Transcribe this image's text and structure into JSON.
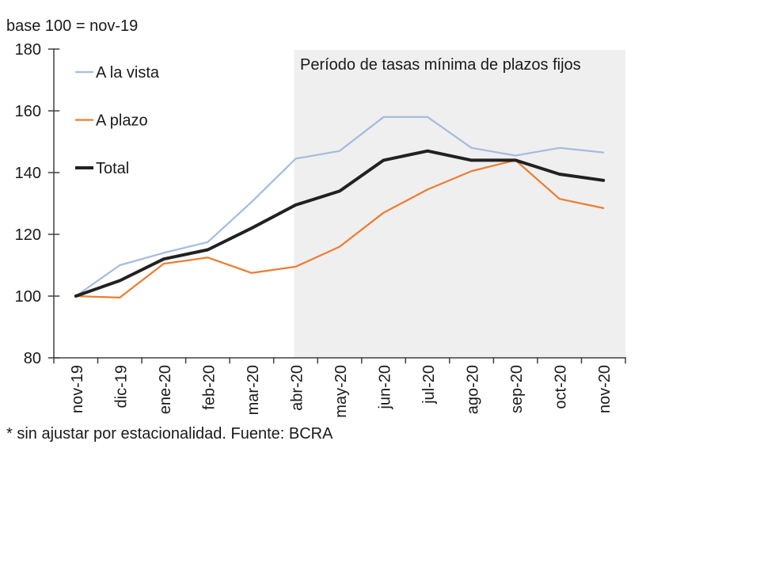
{
  "page": {
    "background_color": "#ffffff"
  },
  "chart_data": {
    "type": "line",
    "title": "base 100 = nov-19",
    "footnote": "* sin ajustar por estacionalidad. Fuente: BCRA",
    "categories": [
      "nov-19",
      "dic-19",
      "ene-20",
      "feb-20",
      "mar-20",
      "abr-20",
      "may-20",
      "jun-20",
      "jul-20",
      "ago-20",
      "sep-20",
      "oct-20",
      "nov-20"
    ],
    "series": [
      {
        "name": "A la vista",
        "color": "#A6BCDE",
        "width": 2.25,
        "values": [
          100,
          110,
          114,
          117.5,
          130.5,
          144.5,
          147,
          158,
          158,
          148,
          145.5,
          148,
          146.5
        ]
      },
      {
        "name": "A plazo",
        "color": "#ED7D31",
        "width": 2.25,
        "values": [
          100,
          99.5,
          110.5,
          112.5,
          107.5,
          109.5,
          116,
          127,
          134.5,
          140.5,
          144,
          131.5,
          128.5
        ]
      },
      {
        "name": "Total",
        "color": "#212121",
        "width": 4,
        "values": [
          100,
          105,
          112,
          115,
          122,
          129.5,
          134,
          144,
          147,
          144,
          144,
          139.5,
          137.5
        ]
      }
    ],
    "ylim": [
      80,
      180
    ],
    "yticks": [
      180,
      160,
      140,
      120,
      100,
      80
    ],
    "grid": false,
    "legend_position": "top-left-inside",
    "shaded_region": {
      "label": "Período de tasas mínima de plazos fijos",
      "start_category": "abr-20",
      "end_category": "nov-20",
      "color": "#EFEFEF"
    },
    "axis_color": "#404040",
    "text_color": "#1a1a1a"
  }
}
